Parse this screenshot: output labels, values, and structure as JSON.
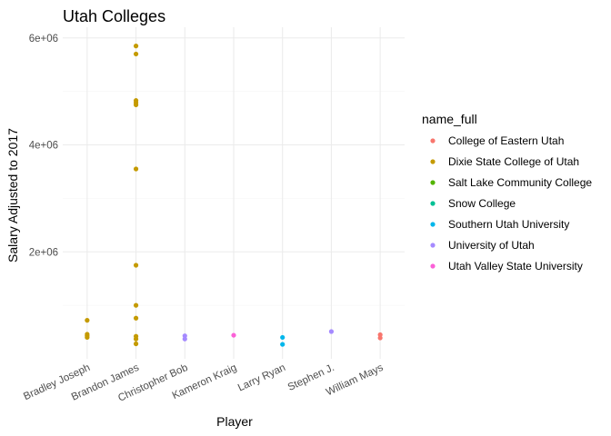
{
  "chart_data": {
    "type": "scatter",
    "title": "Utah Colleges",
    "xlabel": "Player",
    "ylabel": "Salary Adjusted to 2017",
    "categories": [
      "Bradley Joseph",
      "Brandon James",
      "Christopher Bob",
      "Kameron Kraig",
      "Larry Ryan",
      "Stephen J.",
      "William Mays"
    ],
    "y_ticks": [
      2000000,
      4000000,
      6000000
    ],
    "y_tick_labels": [
      "2e+06",
      "4e+06",
      "6e+06"
    ],
    "ylim": [
      0,
      6200000
    ],
    "grid": true,
    "legend": {
      "title": "name_full",
      "position": "right"
    },
    "series": [
      {
        "name": "College of Eastern Utah",
        "color": "#F8766D",
        "points": [
          {
            "x": "William Mays",
            "y": 450000
          },
          {
            "x": "William Mays",
            "y": 390000
          }
        ]
      },
      {
        "name": "Dixie State College of Utah",
        "color": "#C49A00",
        "points": [
          {
            "x": "Bradley Joseph",
            "y": 720000
          },
          {
            "x": "Bradley Joseph",
            "y": 460000
          },
          {
            "x": "Bradley Joseph",
            "y": 430000
          },
          {
            "x": "Bradley Joseph",
            "y": 400000
          },
          {
            "x": "Brandon James",
            "y": 5850000
          },
          {
            "x": "Brandon James",
            "y": 5700000
          },
          {
            "x": "Brandon James",
            "y": 4830000
          },
          {
            "x": "Brandon James",
            "y": 4790000
          },
          {
            "x": "Brandon James",
            "y": 4750000
          },
          {
            "x": "Brandon James",
            "y": 3550000
          },
          {
            "x": "Brandon James",
            "y": 1750000
          },
          {
            "x": "Brandon James",
            "y": 1000000
          },
          {
            "x": "Brandon James",
            "y": 760000
          },
          {
            "x": "Brandon James",
            "y": 420000
          },
          {
            "x": "Brandon James",
            "y": 370000
          },
          {
            "x": "Brandon James",
            "y": 280000
          }
        ]
      },
      {
        "name": "Salt Lake Community College",
        "color": "#53B400",
        "points": []
      },
      {
        "name": "Snow College",
        "color": "#00C094",
        "points": []
      },
      {
        "name": "Southern Utah University",
        "color": "#00B6EB",
        "points": [
          {
            "x": "Larry Ryan",
            "y": 400000
          },
          {
            "x": "Larry Ryan",
            "y": 270000
          }
        ]
      },
      {
        "name": "University of Utah",
        "color": "#A58AFF",
        "points": [
          {
            "x": "Christopher Bob",
            "y": 430000
          },
          {
            "x": "Christopher Bob",
            "y": 370000
          },
          {
            "x": "Stephen J.",
            "y": 510000
          }
        ]
      },
      {
        "name": "Utah Valley State University",
        "color": "#FB61D7",
        "points": [
          {
            "x": "Kameron Kraig",
            "y": 440000
          }
        ]
      }
    ]
  }
}
